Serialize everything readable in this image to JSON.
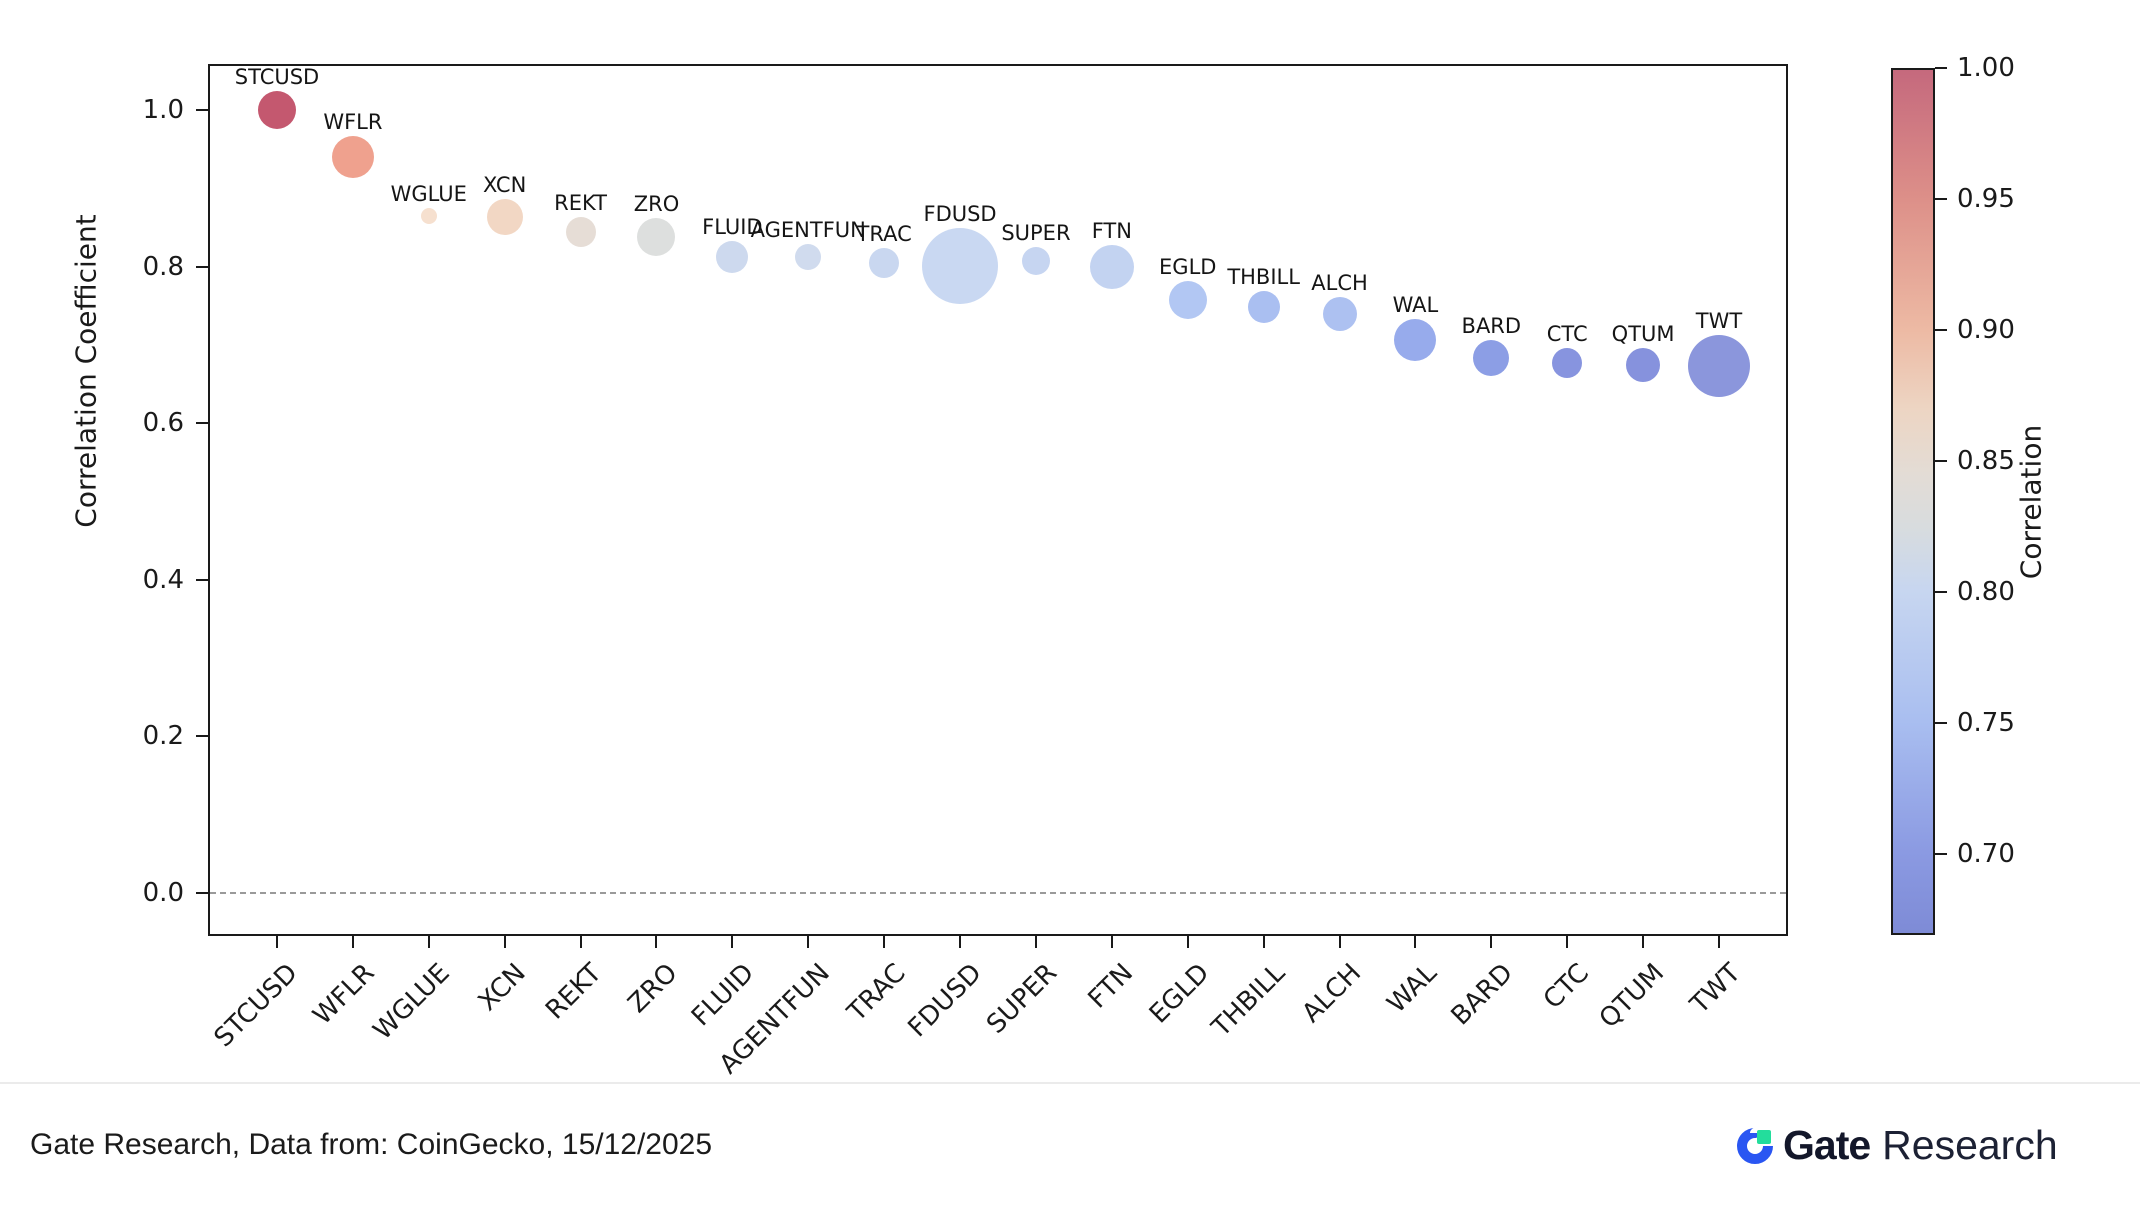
{
  "page": {
    "background": "#ffffff"
  },
  "chart_data": {
    "type": "scatter",
    "title": "",
    "xlabel": "",
    "ylabel": "Correlation Coefficient",
    "ylim": [
      -0.055,
      1.059
    ],
    "grid": false,
    "zero_line": {
      "value": 0.0,
      "style": "dashed",
      "color": "#9a9a9a"
    },
    "y_ticks": [
      {
        "value": 1.0,
        "label": "1.0"
      },
      {
        "value": 0.8,
        "label": "0.8"
      },
      {
        "value": 0.6,
        "label": "0.6"
      },
      {
        "value": 0.4,
        "label": "0.4"
      },
      {
        "value": 0.2,
        "label": "0.2"
      },
      {
        "value": 0.0,
        "label": "0.0"
      }
    ],
    "categories": [
      "STCUSD",
      "WFLR",
      "WGLUE",
      "XCN",
      "REKT",
      "ZRO",
      "FLUID",
      "AGENTFUN",
      "TRAC",
      "FDUSD",
      "SUPER",
      "FTN",
      "EGLD",
      "THBILL",
      "ALCH",
      "WAL",
      "BARD",
      "CTC",
      "QTUM",
      "TWT"
    ],
    "points": [
      {
        "label": "STCUSD",
        "correlation": 1.0,
        "radius": 19,
        "color": "#c4586f"
      },
      {
        "label": "WFLR",
        "correlation": 0.94,
        "radius": 21,
        "color": "#efa18e"
      },
      {
        "label": "WGLUE",
        "correlation": 0.865,
        "radius": 8,
        "color": "#f6e0cf"
      },
      {
        "label": "XCN",
        "correlation": 0.863,
        "radius": 18,
        "color": "#f2d7c4"
      },
      {
        "label": "REKT",
        "correlation": 0.845,
        "radius": 15,
        "color": "#e6ddd6"
      },
      {
        "label": "ZRO",
        "correlation": 0.838,
        "radius": 19,
        "color": "#dddfde"
      },
      {
        "label": "FLUID",
        "correlation": 0.812,
        "radius": 16,
        "color": "#cdd9ee"
      },
      {
        "label": "AGENTFUN",
        "correlation": 0.812,
        "radius": 13,
        "color": "#d0dbee"
      },
      {
        "label": "TRAC",
        "correlation": 0.805,
        "radius": 15,
        "color": "#c9d7f0"
      },
      {
        "label": "FDUSD",
        "correlation": 0.801,
        "radius": 38,
        "color": "#c9d8f2"
      },
      {
        "label": "SUPER",
        "correlation": 0.807,
        "radius": 14,
        "color": "#c6d5f1"
      },
      {
        "label": "FTN",
        "correlation": 0.8,
        "radius": 22,
        "color": "#c3d3f1"
      },
      {
        "label": "EGLD",
        "correlation": 0.757,
        "radius": 19,
        "color": "#b2c7f3"
      },
      {
        "label": "THBILL",
        "correlation": 0.748,
        "radius": 16,
        "color": "#aabff1"
      },
      {
        "label": "ALCH",
        "correlation": 0.74,
        "radius": 17,
        "color": "#adc1f1"
      },
      {
        "label": "WAL",
        "correlation": 0.706,
        "radius": 21,
        "color": "#97abec"
      },
      {
        "label": "BARD",
        "correlation": 0.684,
        "radius": 18,
        "color": "#8c9ee5"
      },
      {
        "label": "CTC",
        "correlation": 0.677,
        "radius": 15,
        "color": "#8794df"
      },
      {
        "label": "QTUM",
        "correlation": 0.674,
        "radius": 17,
        "color": "#8692dd"
      },
      {
        "label": "TWT",
        "correlation": 0.673,
        "radius": 31,
        "color": "#8b96dc"
      }
    ],
    "colorbar": {
      "label": "Correlation",
      "min": 0.669,
      "max": 1.0,
      "ticks": [
        {
          "value": 1.0,
          "label": "1.00"
        },
        {
          "value": 0.95,
          "label": "0.95"
        },
        {
          "value": 0.9,
          "label": "0.90"
        },
        {
          "value": 0.85,
          "label": "0.85"
        },
        {
          "value": 0.8,
          "label": "0.80"
        },
        {
          "value": 0.75,
          "label": "0.75"
        },
        {
          "value": 0.7,
          "label": "0.70"
        }
      ],
      "gradient": [
        {
          "frac": 0.0,
          "color": "#c5697d"
        },
        {
          "frac": 0.151,
          "color": "#dd9089"
        },
        {
          "frac": 0.302,
          "color": "#edbaa4"
        },
        {
          "frac": 0.393,
          "color": "#edd5c3"
        },
        {
          "frac": 0.468,
          "color": "#e3dcd5"
        },
        {
          "frac": 0.529,
          "color": "#d8dcde"
        },
        {
          "frac": 0.604,
          "color": "#c7d6f0"
        },
        {
          "frac": 0.755,
          "color": "#a9bef0"
        },
        {
          "frac": 0.906,
          "color": "#8b9ae2"
        },
        {
          "frac": 1.0,
          "color": "#7e8bd6"
        }
      ]
    }
  },
  "footer": {
    "source_text": "Gate Research, Data from: CoinGecko, 15/12/2025",
    "logo": {
      "brand_bold": "Gate",
      "brand_light": "Research",
      "mark_blue": "#2a56f2",
      "mark_green": "#23dd9c"
    }
  }
}
